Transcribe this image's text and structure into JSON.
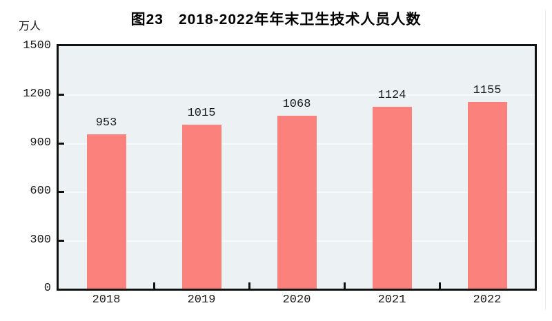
{
  "page": {
    "background": "#ffffff"
  },
  "chart_data": {
    "type": "bar",
    "title": "图23　2018-2022年年末卫生技术人员人数",
    "unit_label": "万人",
    "categories": [
      "2018",
      "2019",
      "2020",
      "2021",
      "2022"
    ],
    "values": [
      953,
      1015,
      1068,
      1124,
      1155
    ],
    "y_ticks": [
      0,
      300,
      600,
      900,
      1200,
      1500
    ],
    "ylim": [
      0,
      1500
    ],
    "grid": true,
    "legend": "none",
    "colors": {
      "bar": "#fa817c",
      "plot_background": "#ecf2f3",
      "gridline": "#f7fafb",
      "axis": "#111111",
      "text": "#1a1a1a"
    }
  }
}
